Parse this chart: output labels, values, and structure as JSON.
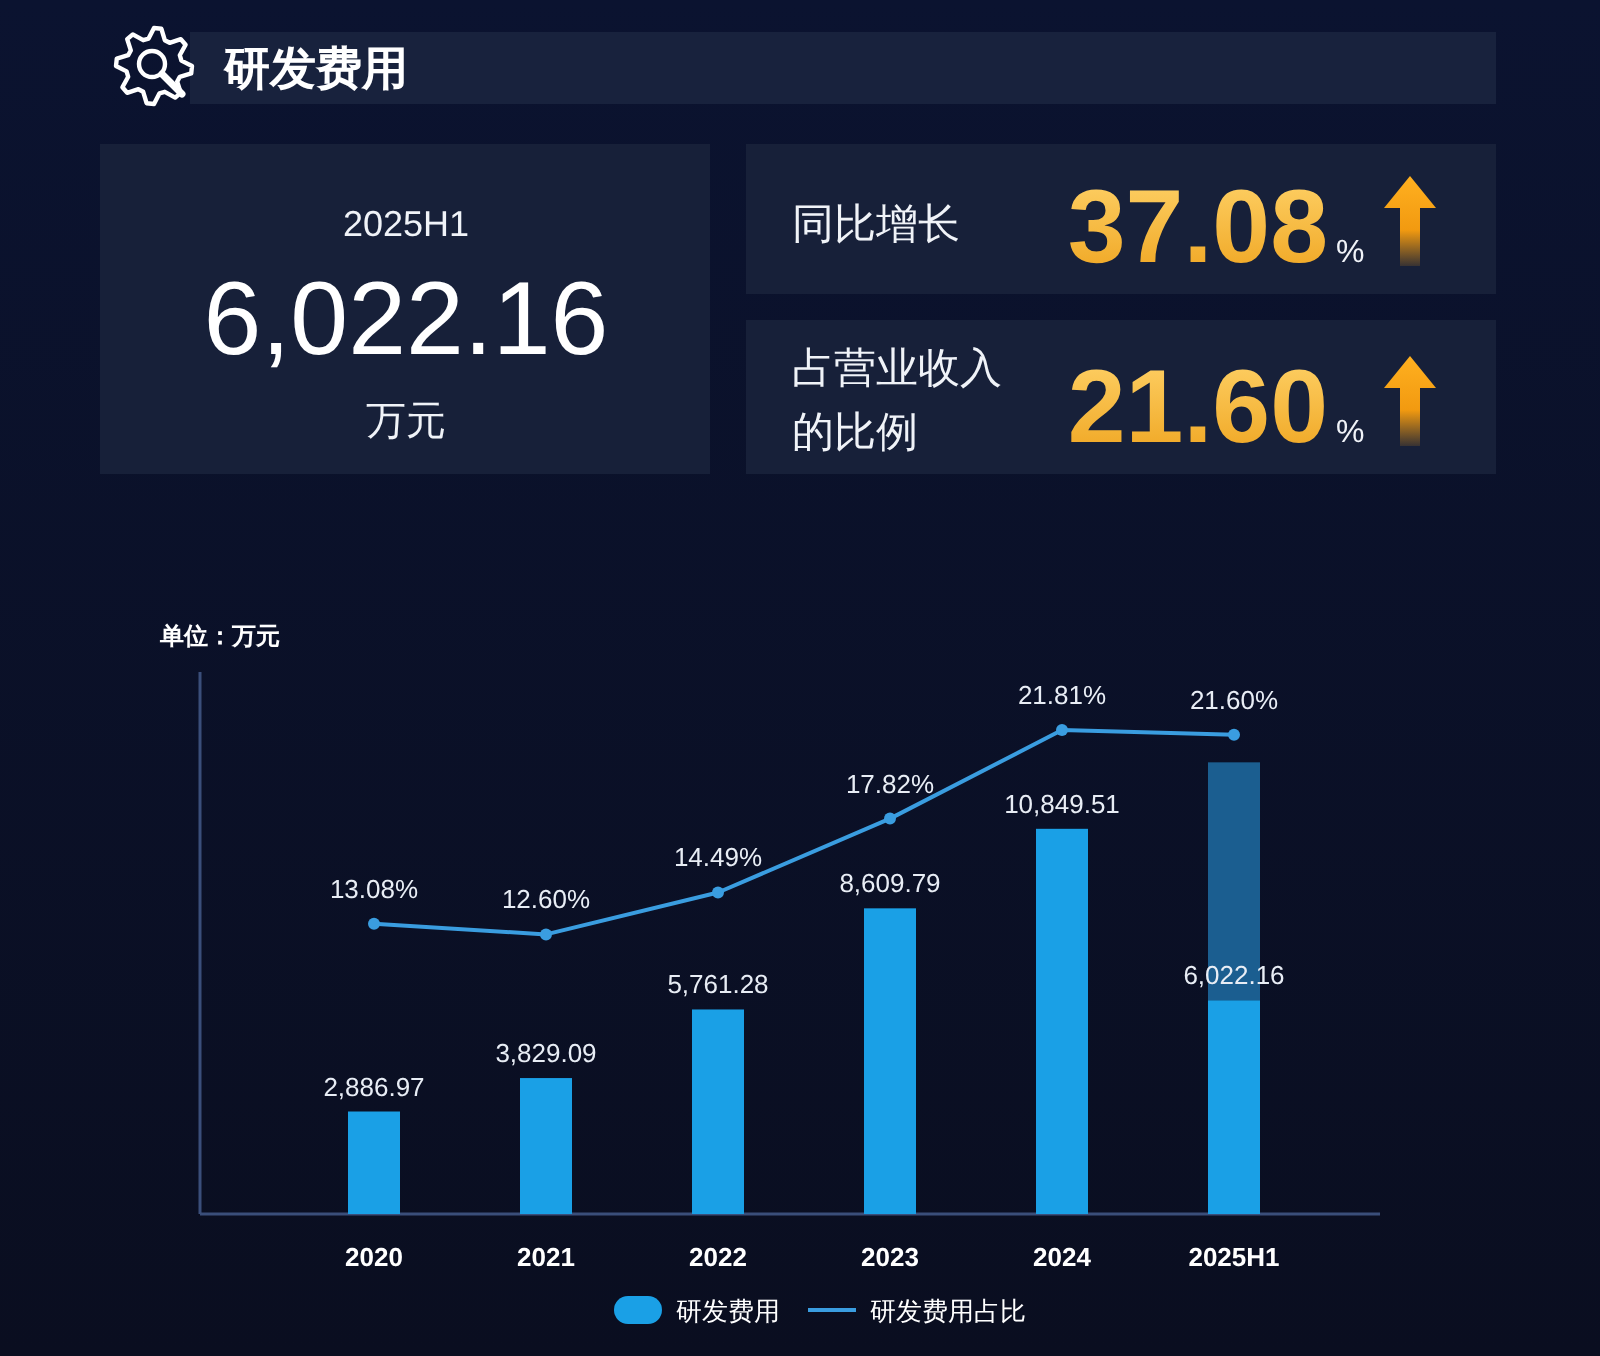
{
  "chart_data": [
    {
      "type": "other",
      "title": "研发费用",
      "annotations": [
        "2025H1",
        "6,022.16",
        "万元",
        "同比增长",
        "37.08",
        "%",
        "占营业收入的比例",
        "21.60",
        "%"
      ]
    },
    {
      "type": "bar",
      "ylabel": "单位：万元",
      "categories": [
        "2020",
        "2021",
        "2022",
        "2023",
        "2024",
        "2025H1"
      ],
      "stacked": true,
      "legend": "bottom",
      "series": [
        {
          "name": "研发费用",
          "type": "bar",
          "color": "#1aa0e6",
          "values": [
            2886.97,
            3829.09,
            5761.28,
            8609.79,
            10849.51,
            6022.16
          ],
          "value_labels": [
            "2,886.97",
            "3,829.09",
            "5,761.28",
            "8,609.79",
            "10,849.51",
            "6,022.16"
          ]
        },
        {
          "type": "bar",
          "color": "#1b5e90",
          "values": [
            null,
            null,
            null,
            null,
            null,
            6700
          ]
        },
        {
          "name": "研发费用占比",
          "type": "line",
          "axis": "y2",
          "color": "#3a9de0",
          "marker": "circle",
          "values": [
            13.08,
            12.6,
            14.49,
            17.82,
            21.81,
            21.6
          ],
          "value_labels": [
            "13.08%",
            "12.60%",
            "14.49%",
            "17.82%",
            "21.81%",
            "21.60%"
          ]
        }
      ]
    }
  ]
}
